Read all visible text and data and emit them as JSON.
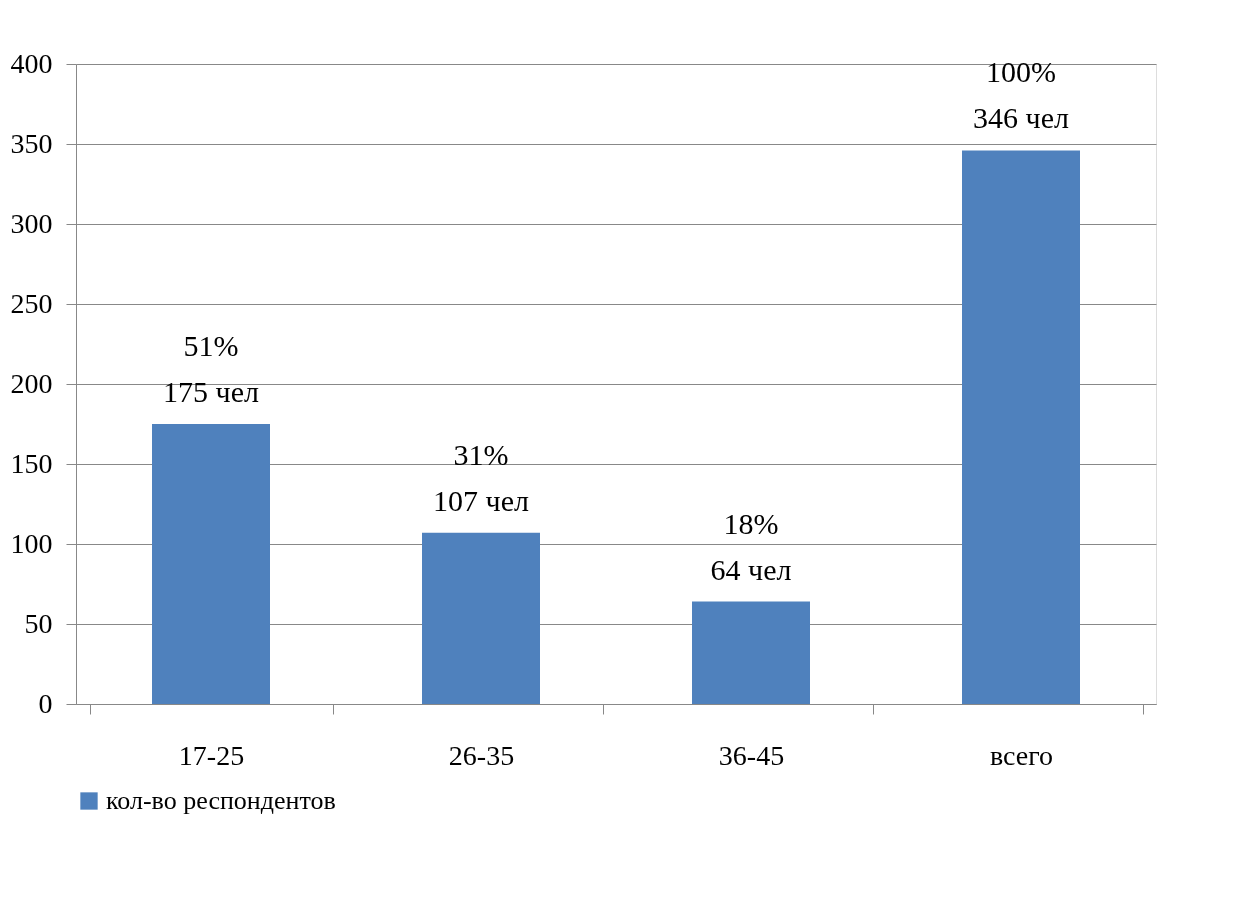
{
  "chart_data": {
    "type": "bar",
    "categories": [
      "17-25",
      "26-35",
      "36-45",
      "всего"
    ],
    "series": [
      {
        "name": "кол-во респондентов",
        "color": "#4f81bd",
        "values": [
          175,
          107,
          64,
          346
        ],
        "value_labels": [
          "51%\n175 чел",
          "31%\n107 чел",
          "18%\n64 чел",
          "100%\n346 чел"
        ]
      }
    ],
    "ylim": [
      0,
      400
    ],
    "yticks": [
      0,
      50,
      100,
      150,
      200,
      250,
      300,
      350,
      400
    ],
    "grid": "y",
    "legend": "bottom"
  }
}
